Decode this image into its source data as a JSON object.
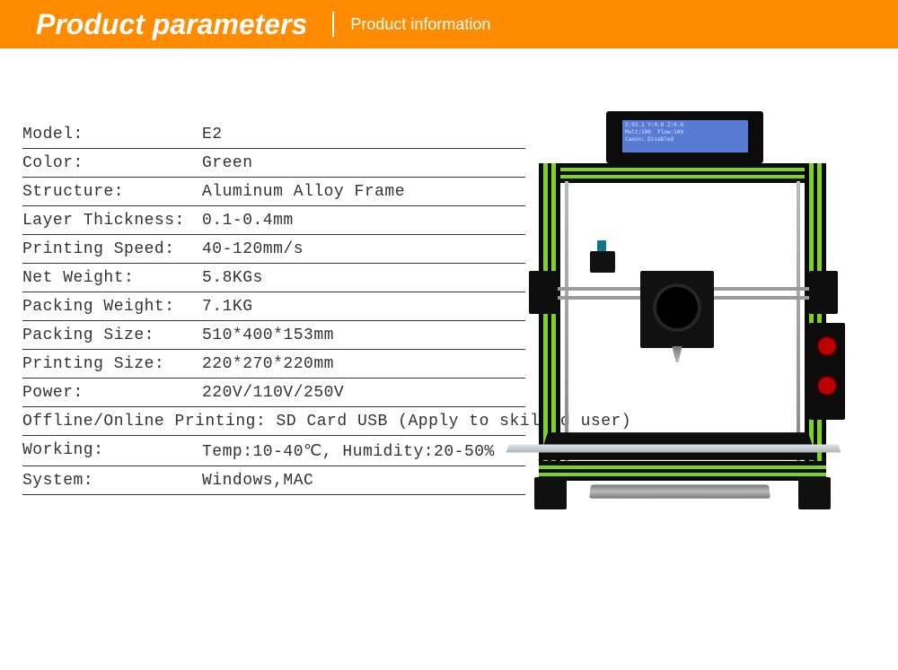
{
  "header": {
    "title": "Product parameters",
    "subtitle": "Product information",
    "bg_color": "#ff8c00",
    "text_color": "#ffffff"
  },
  "specs": [
    {
      "label": "Model:",
      "value": "E2"
    },
    {
      "label": "Color:",
      "value": "Green"
    },
    {
      "label": "Structure:",
      "value": "Aluminum Alloy Frame"
    },
    {
      "label": "Layer Thickness:",
      "value": "0.1-0.4mm"
    },
    {
      "label": "Printing Speed:",
      "value": "40-120mm/s"
    },
    {
      "label": "Net Weight:",
      "value": "5.8KGs"
    },
    {
      "label": "Packing Weight:",
      "value": "7.1KG"
    },
    {
      "label": "Packing Size:",
      "value": "510*400*153mm"
    },
    {
      "label": "Printing Size:",
      "value": "220*270*220mm"
    },
    {
      "label": "Power:",
      "value": "220V/110V/250V"
    },
    {
      "full": "Offline/Online Printing: SD Card USB (Apply to skilled user)"
    },
    {
      "label": "Working:",
      "value": "Temp:10-40℃, Humidity:20-50%"
    },
    {
      "label": "System:",
      "value": "Windows,MAC"
    }
  ],
  "printer": {
    "frame_color": "#0b0b0b",
    "accent_color": "#7ed321",
    "lcd_bg": "#5a7bd4",
    "lcd_text": "X:93.1 Y:0.0 Z:0.0\nMult:100  Flow:100\nCanon: Disabled"
  }
}
